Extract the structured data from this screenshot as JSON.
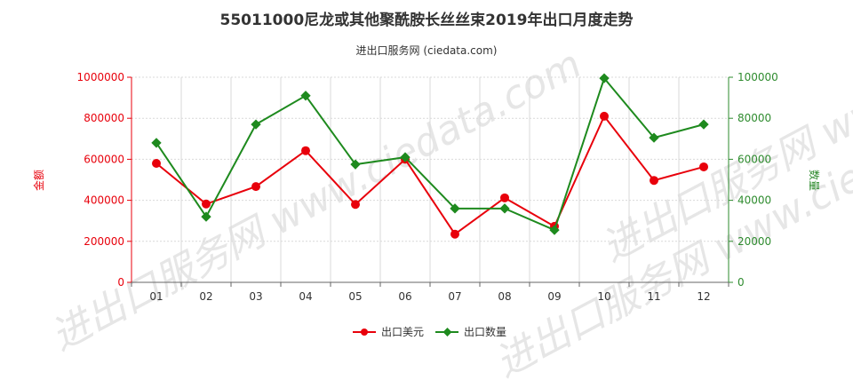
{
  "chart_data": {
    "type": "line",
    "title": "55011000尼龙或其他聚酰胺长丝丝束2019年出口月度走势",
    "subtitle": "进出口服务网 (ciedata.com)",
    "watermark": "进出口服务网 www.ciedata.com",
    "categories": [
      "01",
      "02",
      "03",
      "04",
      "05",
      "06",
      "07",
      "08",
      "09",
      "10",
      "11",
      "12"
    ],
    "series": [
      {
        "name": "出口美元",
        "axis": "left",
        "color": "#e8000b",
        "values": [
          580000,
          382000,
          467000,
          642000,
          380000,
          600000,
          235000,
          412000,
          273000,
          810000,
          497000,
          563000
        ]
      },
      {
        "name": "出口数量",
        "axis": "right",
        "color": "#1e8a1e",
        "values": [
          68000,
          32000,
          77000,
          91000,
          57500,
          61000,
          36000,
          36000,
          25500,
          99500,
          70500,
          77000
        ]
      }
    ],
    "ylabel": "金额",
    "y2label": "数量",
    "ylim": [
      0,
      1000000
    ],
    "y2lim": [
      0,
      100000
    ],
    "yticks": [
      "0",
      "200000",
      "400000",
      "600000",
      "800000",
      "1000000"
    ],
    "y2ticks": [
      "0",
      "20000",
      "40000",
      "60000",
      "80000",
      "100000"
    ],
    "grid": true,
    "legend_position": "bottom"
  }
}
